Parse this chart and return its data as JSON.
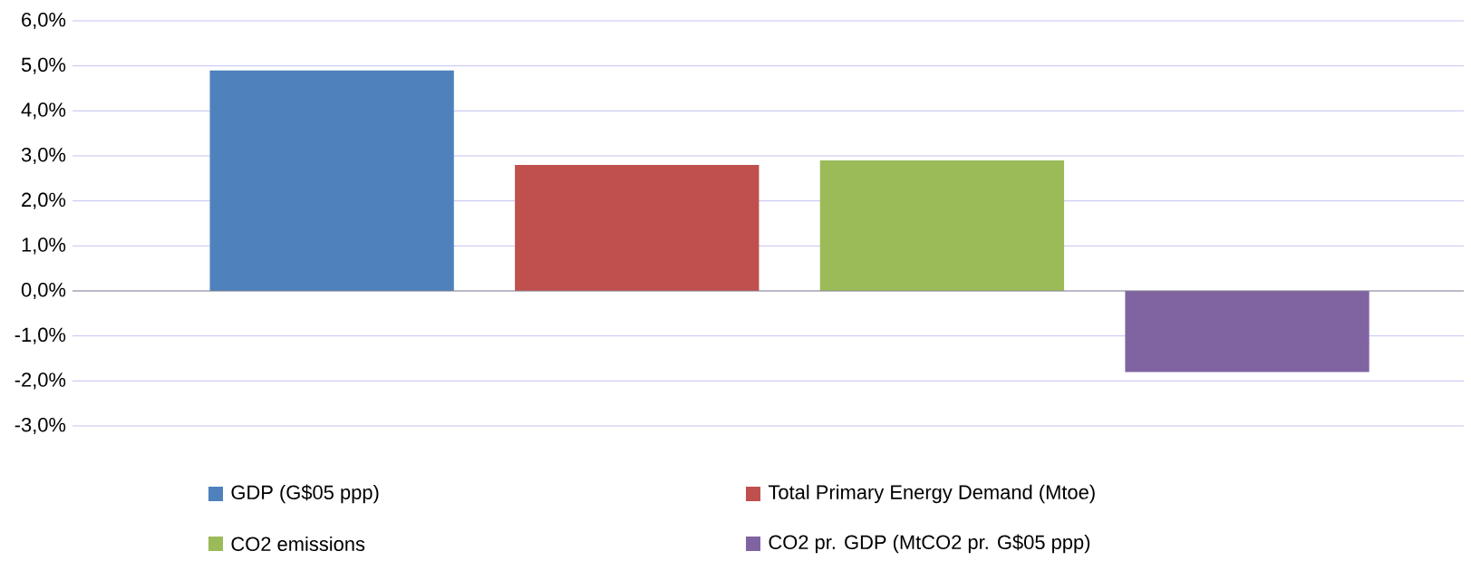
{
  "chart_data": {
    "type": "bar",
    "categories": [
      null,
      null,
      null,
      null
    ],
    "series": [
      {
        "name": "GDP (G$05 ppp)",
        "color": "#4f81bd",
        "values": [
          4.9,
          null,
          null,
          null
        ]
      },
      {
        "name": "Total Primary Energy Demand (Mtoe)",
        "color": "#c0504d",
        "values": [
          null,
          2.8,
          null,
          null
        ]
      },
      {
        "name": "CO2 emissions",
        "color": "#9bbb59",
        "values": [
          null,
          null,
          2.9,
          null
        ]
      },
      {
        "name": "CO2 pr. GDP (MtCO2 pr. G$05 ppp)",
        "color": "#8064a2",
        "values": [
          null,
          null,
          null,
          -1.8
        ]
      }
    ],
    "ylim": [
      -3,
      6
    ],
    "yticks": [
      {
        "value": -3,
        "label": "-3,0%"
      },
      {
        "value": -2,
        "label": "-2,0%"
      },
      {
        "value": -1,
        "label": "-1,0%"
      },
      {
        "value": 0,
        "label": "0,0%"
      },
      {
        "value": 1,
        "label": "1,0%"
      },
      {
        "value": 2,
        "label": "2,0%"
      },
      {
        "value": 3,
        "label": "3,0%"
      },
      {
        "value": 4,
        "label": "4,0%"
      },
      {
        "value": 5,
        "label": "5,0%"
      },
      {
        "value": 6,
        "label": "6,0%"
      }
    ],
    "grid": "y",
    "legend": "bottom"
  }
}
